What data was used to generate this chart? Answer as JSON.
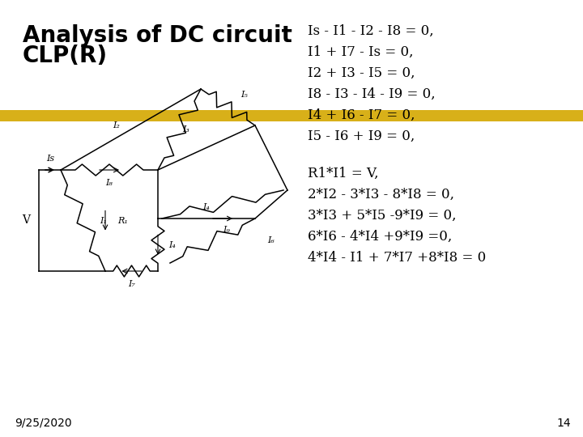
{
  "title_line1": "Analysis of DC circuit",
  "title_line2": "CLP(R)",
  "title_fontsize": 20,
  "highlight_color": "#D4A800",
  "equations_kcl": [
    "Is - I1 - I2 - I8 = 0,",
    "I1 + I7 - Is = 0,",
    "I2 + I3 - I5 = 0,",
    "I8 - I3 - I4 - I9 = 0,",
    "I4 + I6 - I7 = 0,",
    "I5 - I6 + I9 = 0,"
  ],
  "equations_kvl": [
    "R1*I1 = V,",
    "2*I2 - 3*I3 - 8*I8 = 0,",
    "3*I3 + 5*I5 -9*I9 = 0,",
    "6*I6 - 4*I4 +9*I9 =0,",
    "4*I4 - I1 + 7*I7 +8*I8 = 0"
  ],
  "eq_fontsize": 12,
  "footer_date": "9/25/2020",
  "footer_page": "14",
  "footer_fontsize": 10,
  "bg_color": "#ffffff",
  "text_color": "#000000"
}
